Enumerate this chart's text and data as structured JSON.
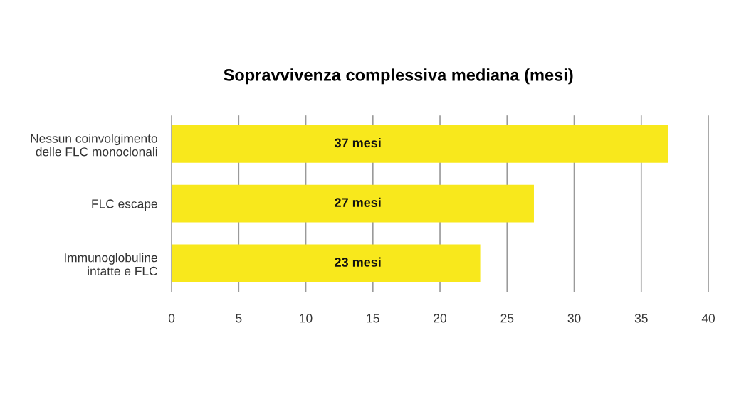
{
  "chart_data": {
    "type": "bar",
    "orientation": "horizontal",
    "title": "Sopravvivenza complessiva mediana (mesi)",
    "categories": [
      "Nessun coinvolgimento\ndelle FLC monoclonali",
      "FLC escape",
      "Immunoglobuline\nintatte e FLC"
    ],
    "values": [
      37,
      27,
      23
    ],
    "value_labels": [
      "37 mesi",
      "27 mesi",
      "23 mesi"
    ],
    "color": "#f8e81c",
    "xlim": [
      0,
      40
    ],
    "xticks": [
      0,
      5,
      10,
      15,
      20,
      25,
      30,
      35,
      40
    ],
    "grid": "x"
  }
}
